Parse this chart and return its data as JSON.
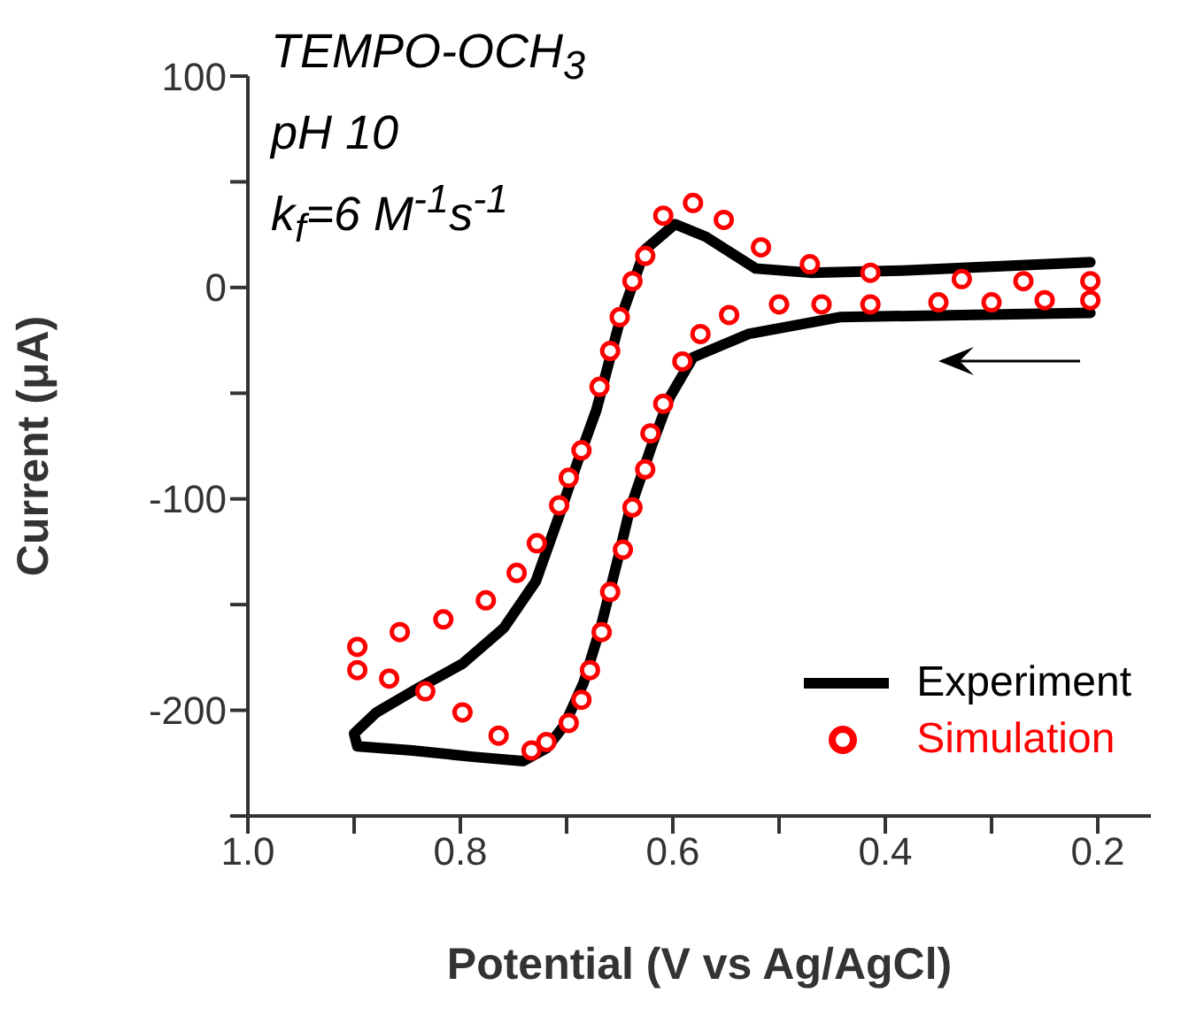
{
  "chart_data": {
    "type": "line",
    "xlabel": "Potential (V vs Ag/AgCl)",
    "ylabel": "Current (μA)",
    "annotations": [
      "TEMPO-OCH$_{3}$",
      "pH 10",
      "k$_{f}$=6 M$^{-1}$s$^{-1}$"
    ],
    "xlim": [
      1.0,
      0.15
    ],
    "xticks": [
      {
        "value": 1.0,
        "label": "1.0"
      },
      {
        "value": 0.9,
        "label": null
      },
      {
        "value": 0.8,
        "label": "0.8"
      },
      {
        "value": 0.7,
        "label": null
      },
      {
        "value": 0.6,
        "label": "0.6"
      },
      {
        "value": 0.5,
        "label": null
      },
      {
        "value": 0.4,
        "label": "0.4"
      },
      {
        "value": 0.3,
        "label": null
      },
      {
        "value": 0.2,
        "label": "0.2"
      }
    ],
    "ylim": [
      -250,
      100
    ],
    "yticks": [
      {
        "value": -250,
        "label": null
      },
      -200,
      {
        "value": -150,
        "label": null
      },
      -100,
      {
        "value": -50,
        "label": null
      },
      0,
      {
        "value": 50,
        "label": null
      },
      100
    ],
    "legend": "bottom right",
    "series": [
      {
        "name": "Experiment",
        "marker": "none",
        "color": "#000000",
        "x": [
          0.207,
          0.443,
          0.529,
          0.581,
          0.603,
          0.62,
          0.641,
          0.65,
          0.667,
          0.684,
          0.702,
          0.719,
          0.741,
          0.788,
          0.845,
          0.897,
          0.9,
          0.879,
          0.845,
          0.798,
          0.759,
          0.729,
          0.707,
          0.69,
          0.672,
          0.65,
          0.626,
          0.598,
          0.569,
          0.522,
          0.471,
          0.384,
          0.207
        ],
        "values": [
          -12,
          -14,
          -22,
          -33,
          -52,
          -75,
          -106,
          -125,
          -159,
          -187,
          -207,
          -218,
          -224,
          -222,
          -219,
          -217,
          -211,
          -201,
          -191,
          -178,
          -161,
          -139,
          -108,
          -83,
          -58,
          -16,
          18,
          30,
          24,
          9,
          7,
          8,
          12
        ]
      },
      {
        "name": "Simulation",
        "type": "scatter",
        "marker": "circle",
        "color": "#ff0000",
        "x": [
          0.207,
          0.25,
          0.3,
          0.35,
          0.414,
          0.46,
          0.5,
          0.547,
          0.574,
          0.591,
          0.609,
          0.621,
          0.626,
          0.638,
          0.647,
          0.659,
          0.667,
          0.678,
          0.686,
          0.698,
          0.719,
          0.733,
          0.764,
          0.798,
          0.833,
          0.867,
          0.897,
          0.897,
          0.857,
          0.816,
          0.776,
          0.747,
          0.728,
          0.707,
          0.698,
          0.686,
          0.669,
          0.659,
          0.65,
          0.638,
          0.626,
          0.609,
          0.581,
          0.552,
          0.517,
          0.471,
          0.414,
          0.328,
          0.27,
          0.207
        ],
        "values": [
          -6,
          -6,
          -7,
          -7,
          -8,
          -8,
          -8,
          -13,
          -22,
          -35,
          -55,
          -69,
          -86,
          -104,
          -124,
          -144,
          -163,
          -181,
          -195,
          -206,
          -215,
          -219,
          -212,
          -201,
          -191,
          -185,
          -181,
          -170,
          -163,
          -157,
          -148,
          -135,
          -121,
          -103,
          -90,
          -77,
          -47,
          -30,
          -14,
          3,
          15,
          34,
          40,
          32,
          19,
          11,
          7,
          4,
          3,
          3
        ]
      }
    ]
  }
}
